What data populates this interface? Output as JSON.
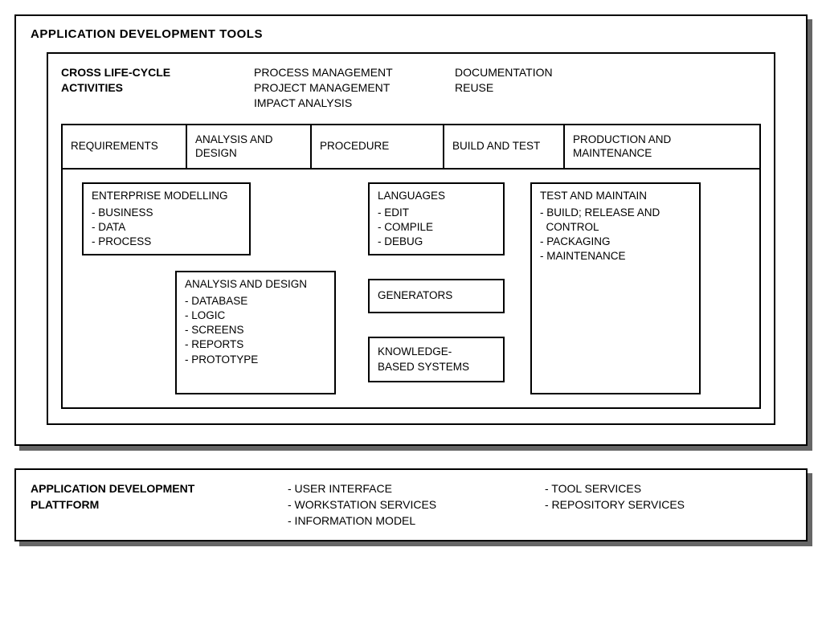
{
  "colors": {
    "background": "#ffffff",
    "border": "#000000",
    "shadow": "#666666",
    "text": "#000000"
  },
  "typography": {
    "font_family": "Arial, Helvetica, sans-serif",
    "title_fontsize": 15,
    "body_fontsize": 14,
    "cell_fontsize": 13.5
  },
  "diagram": {
    "type": "block-diagram",
    "outer_title": "APPLICATION DEVELOPMENT TOOLS",
    "cross_lifecycle": {
      "title_line1": "CROSS LIFE-CYCLE",
      "title_line2": "ACTIVITIES",
      "col1_line1": "PROCESS MANAGEMENT",
      "col1_line2": "PROJECT MANAGEMENT",
      "col1_line3": "IMPACT ANALYSIS",
      "col2_line1": "DOCUMENTATION",
      "col2_line2": "REUSE"
    },
    "phases": {
      "p1": "REQUIREMENTS",
      "p2": "ANALYSIS AND DESIGN",
      "p3": "PROCEDURE",
      "p4": "BUILD AND TEST",
      "p5": "PRODUCTION AND MAINTENANCE"
    },
    "boxes": {
      "enterprise_modelling": {
        "title": "ENTERPRISE MODELLING",
        "i1": "- BUSINESS",
        "i2": "- DATA",
        "i3": "- PROCESS"
      },
      "analysis_design": {
        "title": "ANALYSIS AND DESIGN",
        "i1": "- DATABASE",
        "i2": "- LOGIC",
        "i3": "- SCREENS",
        "i4": "- REPORTS",
        "i5": "- PROTOTYPE"
      },
      "languages": {
        "title": "LANGUAGES",
        "i1": "- EDIT",
        "i2": "- COMPILE",
        "i3": "- DEBUG"
      },
      "generators": {
        "title": "GENERATORS"
      },
      "kbs": {
        "line1": "KNOWLEDGE-",
        "line2": "BASED SYSTEMS"
      },
      "test_maintain": {
        "title": "TEST AND MAINTAIN",
        "i1a": "- BUILD; RELEASE AND",
        "i1b": "  CONTROL",
        "i2": "- PACKAGING",
        "i3": "- MAINTENANCE"
      }
    },
    "platform": {
      "title_line1": "APPLICATION DEVELOPMENT",
      "title_line2": "PLATTFORM",
      "col1_i1": "- USER INTERFACE",
      "col1_i2": "- WORKSTATION SERVICES",
      "col1_i3": "- INFORMATION MODEL",
      "col2_i1": "- TOOL SERVICES",
      "col2_i2": "- REPOSITORY SERVICES"
    }
  }
}
